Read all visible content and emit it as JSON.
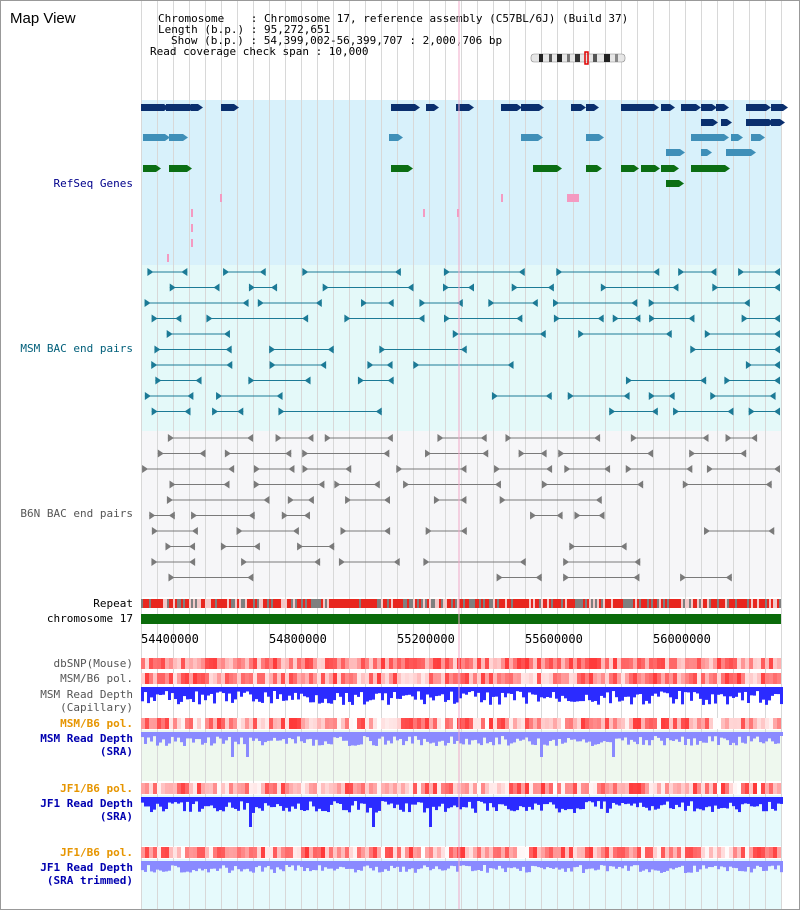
{
  "title": "Map View",
  "header": {
    "line1": "Chromosome    : Chromosome 17, reference assembly (C57BL/6J) (Build 37)",
    "line2": "Length (b.p.) : 95,272,651",
    "line3": "Show (b.p.) : 54,399,002-56,399,707 : 2,000,706 bp",
    "line4": "Read coverage check span : 10,000"
  },
  "tracks": {
    "refseq": "RefSeq Genes",
    "msm_bac": "MSM BAC end pairs",
    "b6n_bac": "B6N BAC end pairs",
    "repeat": "Repeat",
    "chromosome": "chromosome 17",
    "dbsnp": "dbSNP(Mouse)",
    "msm_pol": "MSM/B6 pol.",
    "msm_rd_cap_1": "MSM Read Depth",
    "msm_rd_cap_2": "(Capillary)",
    "msm_pol_sra": "MSM/B6 pol.",
    "msm_rd_sra_1": "MSM Read Depth",
    "msm_rd_sra_2": "(SRA)",
    "jf1_pol": "JF1/B6 pol.",
    "jf1_rd_sra_1": "JF1 Read Depth",
    "jf1_rd_sra_2": "(SRA)",
    "jf1_pol_trim": "JF1/B6 pol.",
    "jf1_rd_trim_1": "JF1 Read Depth",
    "jf1_rd_trim_2": "(SRA trimmed)"
  },
  "axis": {
    "ticks": [
      "54400000",
      "54800000",
      "55200000",
      "55600000",
      "56000000"
    ]
  },
  "colors": {
    "refseq_dark": "#0a2f6e",
    "refseq_mid": "#3f8fb8",
    "refseq_green": "#0b6e13",
    "refseq_pink": "#f49ac1",
    "msm_bac": "#1c7a96",
    "b6n_bac": "#7a7a7a",
    "repeat_red": "#e8261e",
    "chromosome_green": "#0a6b0a",
    "depth_blue": "#2b2bff",
    "depth_light_blue": "#8a8aff",
    "pol_red": "#ff4c4c",
    "pol_light": "#ffd0d0"
  }
}
